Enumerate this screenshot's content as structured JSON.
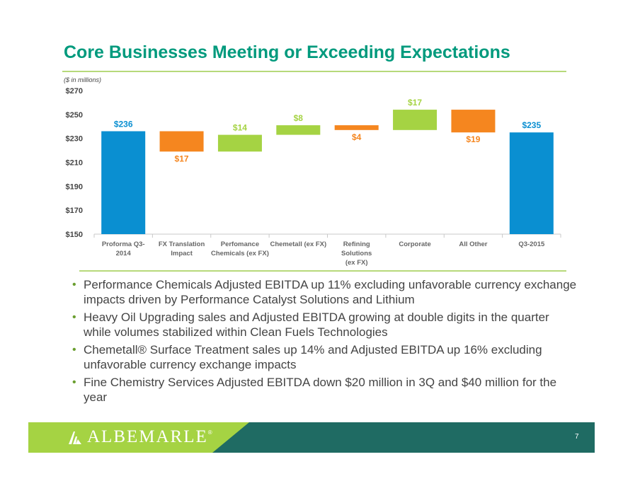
{
  "title": "Core Businesses Meeting or Exceeding Expectations",
  "subtitle": "($ in millions)",
  "colors": {
    "total": "#0a8fd1",
    "negative": "#f5861f",
    "positive": "#a5d343"
  },
  "chart_data": {
    "type": "bar",
    "variant": "waterfall",
    "title": "",
    "xlabel": "",
    "ylabel": "",
    "ylim": [
      150,
      270
    ],
    "yticks": [
      150,
      170,
      190,
      210,
      230,
      250,
      270
    ],
    "ytick_labels": [
      "$150",
      "$170",
      "$190",
      "$210",
      "$230",
      "$250",
      "$270"
    ],
    "grid": false,
    "categories": [
      [
        "Proforma Q3-",
        "2014"
      ],
      [
        "FX Translation",
        "Impact"
      ],
      [
        "Perfomance",
        "Chemicals (ex FX)"
      ],
      [
        "Chemetall (ex FX)"
      ],
      [
        "Refining",
        "Solutions",
        "(ex FX)"
      ],
      [
        "Corporate"
      ],
      [
        "All Other"
      ],
      [
        "Q3-2015"
      ]
    ],
    "bars": [
      {
        "kind": "total",
        "start": 150,
        "end": 236,
        "label": "$236",
        "label_pos": "above"
      },
      {
        "kind": "negative",
        "start": 236,
        "end": 219,
        "label": "$17",
        "label_pos": "below"
      },
      {
        "kind": "positive",
        "start": 219,
        "end": 233,
        "label": "$14",
        "label_pos": "above"
      },
      {
        "kind": "positive",
        "start": 233,
        "end": 241,
        "label": "$8",
        "label_pos": "above"
      },
      {
        "kind": "negative",
        "start": 241,
        "end": 237,
        "label": "$4",
        "label_pos": "below"
      },
      {
        "kind": "positive",
        "start": 237,
        "end": 254,
        "label": "$17",
        "label_pos": "above"
      },
      {
        "kind": "negative",
        "start": 254,
        "end": 235,
        "label": "$19",
        "label_pos": "below"
      },
      {
        "kind": "total",
        "start": 150,
        "end": 235,
        "label": "$235",
        "label_pos": "above"
      }
    ]
  },
  "bullets": [
    "Performance Chemicals Adjusted EBITDA up 11% excluding unfavorable currency exchange impacts driven by Performance Catalyst Solutions and Lithium",
    "Heavy Oil Upgrading sales and Adjusted EBITDA growing at double digits in the quarter while volumes stabilized within Clean Fuels Technologies",
    "Chemetall® Surface Treatment sales up 14% and Adjusted EBITDA up 16% excluding unfavorable currency exchange impacts",
    "Fine Chemistry Services Adjusted EBITDA down $20 million in 3Q and $40 million for the year"
  ],
  "footer": {
    "logo_text": "ALBEMARLE",
    "logo_reg": "®",
    "page_number": "7"
  }
}
